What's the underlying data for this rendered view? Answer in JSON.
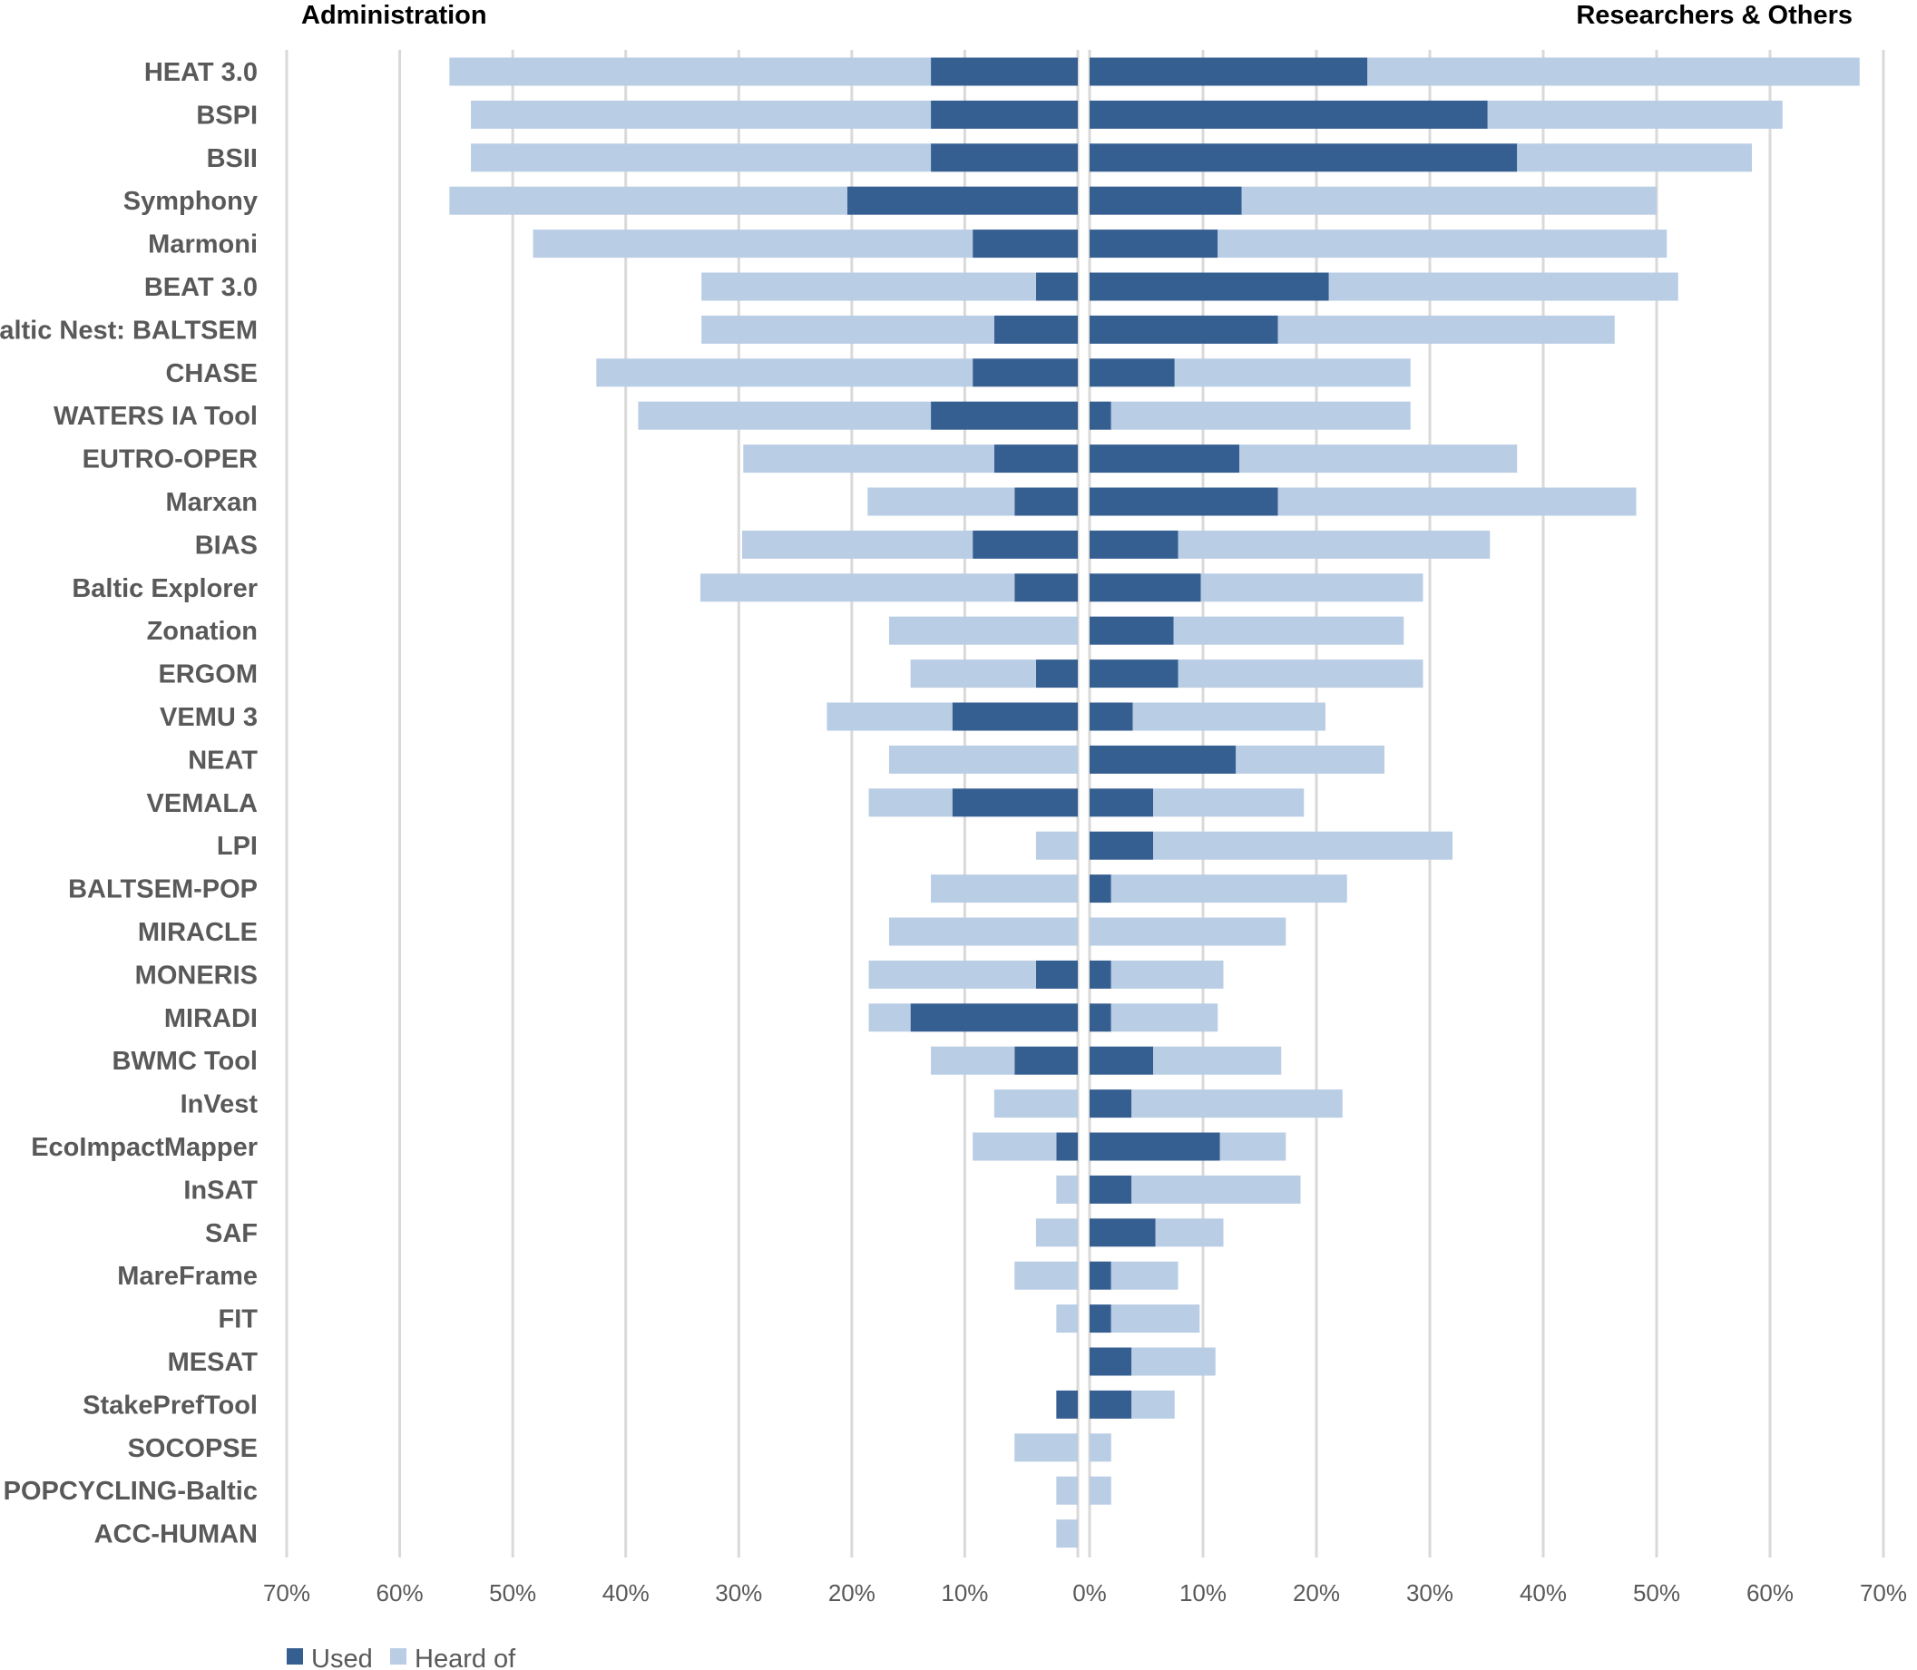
{
  "chart_data": {
    "type": "bar",
    "orientation": "horizontal-diverging",
    "panels": [
      "Administration",
      "Researchers & Others"
    ],
    "x_ticks_left": [
      "70%",
      "60%",
      "50%",
      "40%",
      "30%",
      "20%",
      "10%"
    ],
    "x_ticks_right": [
      "0%",
      "10%",
      "20%",
      "30%",
      "40%",
      "50%",
      "60%",
      "70%"
    ],
    "xlim": [
      0,
      70
    ],
    "unit": "%",
    "legend": [
      {
        "name": "Used",
        "color": "#365f91"
      },
      {
        "name": "Heard of",
        "color": "#b9cde5"
      }
    ],
    "categories": [
      "HEAT 3.0",
      "BSPI",
      "BSII",
      "Symphony",
      "Marmoni",
      "BEAT 3.0",
      "Baltic Nest: BALTSEM",
      "CHASE",
      "WATERS IA Tool",
      "EUTRO-OPER",
      "Marxan",
      "BIAS",
      "Baltic Explorer",
      "Zonation",
      "ERGOM",
      "VEMU 3",
      "NEAT",
      "VEMALA",
      "LPI",
      "BALTSEM-POP",
      "MIRACLE",
      "MONERIS",
      "MIRADI",
      "BWMC Tool",
      "InVest",
      "EcoImpactMapper",
      "InSAT",
      "SAF",
      "MareFrame",
      "FIT",
      "MESAT",
      "StakePrefTool",
      "SOCOPSE",
      "POPCYCLING-Baltic",
      "ACC-HUMAN"
    ],
    "series": [
      {
        "name": "Administration — Used",
        "values": [
          13.0,
          13.0,
          13.0,
          20.4,
          9.3,
          3.7,
          7.4,
          9.3,
          13.0,
          7.4,
          5.6,
          9.3,
          5.6,
          0,
          3.7,
          11.1,
          0,
          11.1,
          0,
          0,
          0,
          3.7,
          14.8,
          5.6,
          0,
          1.9,
          0,
          0,
          0,
          0,
          0,
          1.9,
          0,
          0,
          0
        ]
      },
      {
        "name": "Administration — Heard of",
        "values": [
          42.6,
          40.7,
          40.7,
          35.2,
          38.9,
          29.6,
          25.9,
          33.3,
          25.9,
          22.2,
          13.0,
          20.4,
          27.8,
          16.7,
          11.1,
          11.1,
          16.7,
          7.4,
          3.7,
          13.0,
          16.7,
          14.8,
          3.7,
          7.4,
          7.4,
          7.4,
          1.9,
          3.7,
          5.6,
          1.9,
          0,
          0,
          5.6,
          1.9,
          1.9
        ]
      },
      {
        "name": "Researchers & Others — Used",
        "values": [
          24.5,
          35.1,
          37.7,
          13.4,
          11.3,
          21.1,
          16.6,
          7.5,
          1.9,
          13.2,
          16.6,
          7.8,
          9.8,
          7.4,
          7.8,
          3.8,
          12.9,
          5.6,
          5.6,
          1.9,
          0,
          1.9,
          1.9,
          5.6,
          3.7,
          11.5,
          3.7,
          5.8,
          1.9,
          1.9,
          3.7,
          3.7,
          0,
          0,
          0
        ]
      },
      {
        "name": "Researchers & Others — Heard of",
        "values": [
          43.4,
          26.0,
          20.7,
          36.6,
          39.6,
          30.8,
          29.7,
          20.8,
          26.4,
          24.5,
          31.6,
          27.5,
          19.6,
          20.3,
          21.6,
          17.0,
          13.1,
          13.3,
          26.4,
          20.8,
          17.3,
          9.9,
          9.4,
          11.3,
          18.6,
          5.8,
          14.9,
          6.0,
          5.9,
          7.8,
          7.4,
          3.8,
          1.9,
          1.9,
          0
        ]
      }
    ]
  }
}
